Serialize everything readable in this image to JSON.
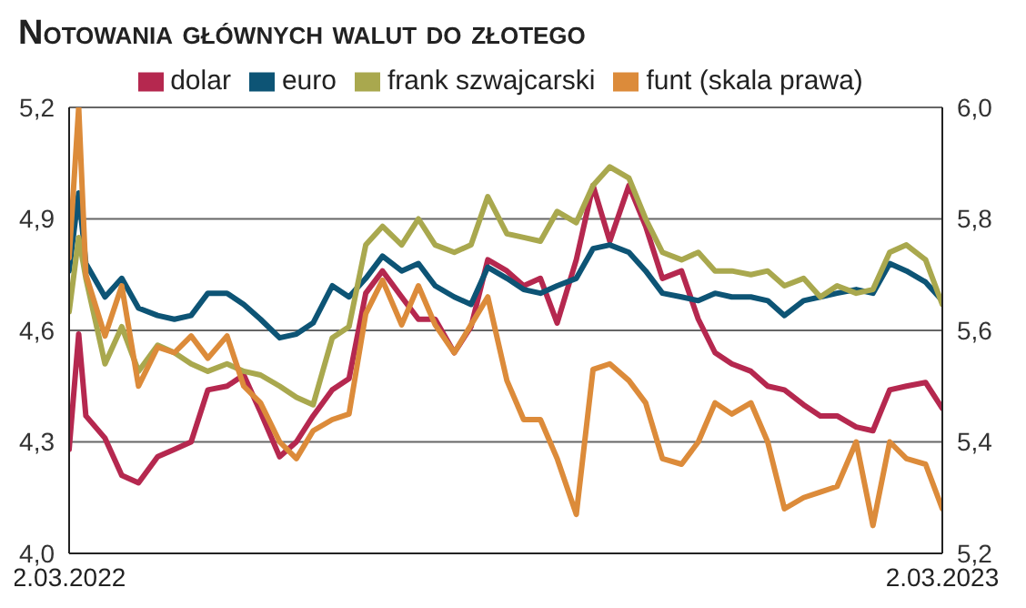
{
  "chart_data": {
    "type": "line",
    "title": "Notowania głównych walut do złotego",
    "x": [
      "2022-03-02",
      "2022-03-06",
      "2022-03-09",
      "2022-03-17",
      "2022-03-24",
      "2022-03-31",
      "2022-04-08",
      "2022-04-15",
      "2022-04-22",
      "2022-04-29",
      "2022-05-07",
      "2022-05-14",
      "2022-05-21",
      "2022-05-29",
      "2022-06-05",
      "2022-06-12",
      "2022-06-20",
      "2022-06-27",
      "2022-07-04",
      "2022-07-11",
      "2022-07-19",
      "2022-07-26",
      "2022-08-02",
      "2022-08-10",
      "2022-08-17",
      "2022-08-24",
      "2022-09-01",
      "2022-09-08",
      "2022-09-15",
      "2022-09-22",
      "2022-09-30",
      "2022-10-07",
      "2022-10-14",
      "2022-10-22",
      "2022-10-29",
      "2022-11-05",
      "2022-11-13",
      "2022-11-20",
      "2022-11-27",
      "2022-12-04",
      "2022-12-12",
      "2022-12-19",
      "2022-12-26",
      "2023-01-03",
      "2023-01-10",
      "2023-01-17",
      "2023-01-25",
      "2023-02-01",
      "2023-02-08",
      "2023-02-15",
      "2023-02-23",
      "2023-03-02"
    ],
    "series": [
      {
        "name": "dolar",
        "color": "#b5284f",
        "values": [
          4.28,
          4.59,
          4.37,
          4.31,
          4.21,
          4.19,
          4.26,
          4.28,
          4.3,
          4.44,
          4.45,
          4.48,
          4.38,
          4.26,
          4.3,
          4.37,
          4.44,
          4.47,
          4.7,
          4.76,
          4.69,
          4.63,
          4.63,
          4.54,
          4.61,
          4.79,
          4.76,
          4.72,
          4.74,
          4.62,
          4.79,
          4.99,
          4.84,
          4.99,
          4.88,
          4.74,
          4.76,
          4.63,
          4.54,
          4.51,
          4.49,
          4.45,
          4.44,
          4.4,
          4.37,
          4.37,
          4.34,
          4.33,
          4.44,
          4.45,
          4.46,
          4.39
        ]
      },
      {
        "name": "euro",
        "color": "#0d5475",
        "values": [
          4.76,
          4.97,
          4.78,
          4.69,
          4.74,
          4.66,
          4.64,
          4.63,
          4.64,
          4.7,
          4.7,
          4.67,
          4.63,
          4.58,
          4.59,
          4.62,
          4.72,
          4.69,
          4.74,
          4.8,
          4.76,
          4.78,
          4.72,
          4.69,
          4.67,
          4.77,
          4.74,
          4.71,
          4.7,
          4.72,
          4.74,
          4.82,
          4.83,
          4.81,
          4.76,
          4.7,
          4.69,
          4.68,
          4.7,
          4.69,
          4.69,
          4.68,
          4.64,
          4.68,
          4.69,
          4.7,
          4.71,
          4.7,
          4.78,
          4.76,
          4.73,
          4.68
        ]
      },
      {
        "name": "frank szwajcarski",
        "color": "#a9a84e",
        "values": [
          4.65,
          4.85,
          4.74,
          4.51,
          4.61,
          4.49,
          4.56,
          4.54,
          4.51,
          4.49,
          4.51,
          4.49,
          4.48,
          4.45,
          4.42,
          4.4,
          4.58,
          4.61,
          4.83,
          4.88,
          4.83,
          4.9,
          4.83,
          4.81,
          4.83,
          4.96,
          4.86,
          4.85,
          4.84,
          4.92,
          4.89,
          4.99,
          5.04,
          5.01,
          4.9,
          4.81,
          4.79,
          4.81,
          4.76,
          4.76,
          4.75,
          4.76,
          4.72,
          4.74,
          4.69,
          4.72,
          4.7,
          4.71,
          4.81,
          4.83,
          4.79,
          4.67
        ]
      },
      {
        "name": "funt (skala prawa)",
        "color": "#dc8b3a",
        "axis": "y2",
        "values": [
          5.73,
          6.0,
          5.7,
          5.59,
          5.68,
          5.5,
          5.57,
          5.56,
          5.59,
          5.55,
          5.59,
          5.5,
          5.47,
          5.4,
          5.37,
          5.42,
          5.44,
          5.45,
          5.63,
          5.69,
          5.61,
          5.68,
          5.61,
          5.56,
          5.61,
          5.66,
          5.51,
          5.44,
          5.44,
          5.37,
          5.27,
          5.53,
          5.54,
          5.51,
          5.47,
          5.37,
          5.36,
          5.4,
          5.47,
          5.45,
          5.47,
          5.4,
          5.28,
          5.3,
          5.31,
          5.32,
          5.4,
          5.25,
          5.4,
          5.37,
          5.36,
          5.28
        ]
      }
    ],
    "xlim": [
      "2022-03-02",
      "2023-03-02"
    ],
    "xticks": [
      {
        "value": "2022-03-02",
        "label": "2.03.2022"
      },
      {
        "value": "2023-03-02",
        "label": "2.03.2023"
      }
    ],
    "ylim": [
      4.0,
      5.2
    ],
    "yticks": [
      {
        "value": 4.0,
        "label": "4,0"
      },
      {
        "value": 4.3,
        "label": "4,3"
      },
      {
        "value": 4.6,
        "label": "4,6"
      },
      {
        "value": 4.9,
        "label": "4,9"
      },
      {
        "value": 5.2,
        "label": "5,2"
      }
    ],
    "y2lim": [
      5.2,
      6.0
    ],
    "y2ticks": [
      {
        "value": 5.2,
        "label": "5,2"
      },
      {
        "value": 5.4,
        "label": "5,4"
      },
      {
        "value": 5.6,
        "label": "5,6"
      },
      {
        "value": 5.8,
        "label": "5,8"
      },
      {
        "value": 6.0,
        "label": "6,0"
      }
    ],
    "grid": "y",
    "legend": "top",
    "marker": "none",
    "line_style": "solid"
  }
}
